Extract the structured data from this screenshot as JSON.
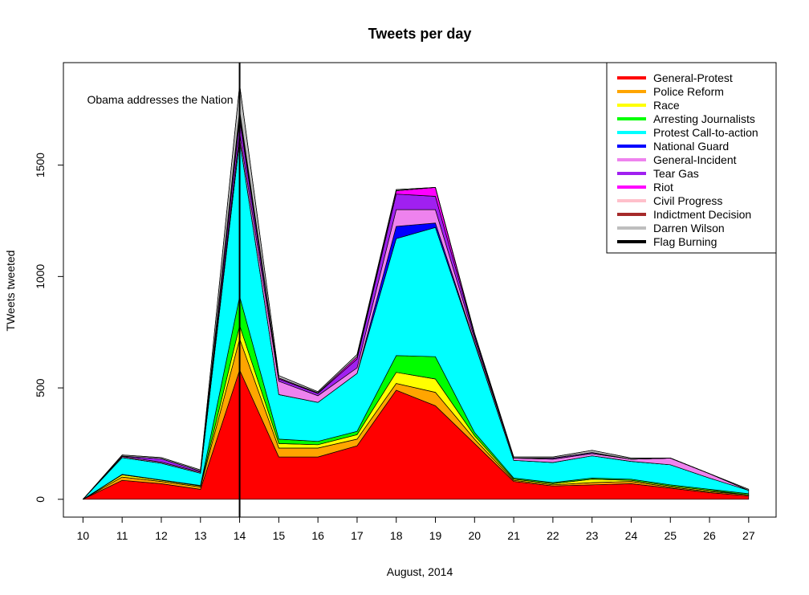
{
  "chart_data": {
    "type": "area",
    "stacked": true,
    "title": "Tweets per day",
    "xlabel": "August, 2014",
    "ylabel": "TWeets tweeted",
    "x": [
      10,
      11,
      12,
      13,
      14,
      15,
      16,
      17,
      18,
      19,
      20,
      21,
      22,
      23,
      24,
      25,
      26,
      27
    ],
    "xlim": [
      9.5,
      27.7
    ],
    "ylim": [
      -80,
      1960
    ],
    "yticks": [
      0,
      500,
      1000,
      1500
    ],
    "xticks": [
      10,
      11,
      12,
      13,
      14,
      15,
      16,
      17,
      18,
      19,
      20,
      21,
      22,
      23,
      24,
      25,
      26,
      27
    ],
    "grid": false,
    "legend_position": "top-right",
    "annotation": {
      "text": "Obama addresses the Nation",
      "x": 14
    },
    "series": [
      {
        "name": "General-Protest",
        "color": "#FF0000",
        "values": [
          0,
          85,
          70,
          45,
          580,
          190,
          190,
          240,
          490,
          420,
          250,
          80,
          60,
          65,
          70,
          50,
          30,
          15
        ]
      },
      {
        "name": "Police Reform",
        "color": "#FFA500",
        "values": [
          0,
          15,
          10,
          10,
          140,
          40,
          40,
          30,
          30,
          60,
          20,
          5,
          5,
          10,
          10,
          5,
          5,
          5
        ]
      },
      {
        "name": "Race",
        "color": "#FFFF00",
        "values": [
          0,
          10,
          5,
          5,
          60,
          20,
          15,
          20,
          50,
          60,
          15,
          5,
          5,
          15,
          5,
          5,
          5,
          0
        ]
      },
      {
        "name": "Arresting Journalists",
        "color": "#00FF00",
        "values": [
          0,
          2,
          2,
          2,
          130,
          20,
          15,
          15,
          75,
          100,
          15,
          5,
          5,
          5,
          5,
          5,
          5,
          5
        ]
      },
      {
        "name": "Protest Call-to-action",
        "color": "#00FFFF",
        "values": [
          0,
          75,
          75,
          55,
          700,
          200,
          175,
          260,
          525,
          580,
          400,
          80,
          90,
          100,
          80,
          90,
          50,
          15
        ]
      },
      {
        "name": "National Guard",
        "color": "#0000FF",
        "values": [
          0,
          0,
          0,
          0,
          5,
          0,
          0,
          0,
          55,
          20,
          5,
          0,
          0,
          0,
          0,
          0,
          0,
          0
        ]
      },
      {
        "name": "General-Incident",
        "color": "#EE82EE",
        "values": [
          0,
          5,
          5,
          5,
          30,
          60,
          30,
          25,
          75,
          60,
          15,
          10,
          15,
          10,
          10,
          30,
          20,
          0
        ]
      },
      {
        "name": "Tear Gas",
        "color": "#A020F0",
        "values": [
          0,
          2,
          15,
          5,
          60,
          10,
          10,
          40,
          70,
          60,
          15,
          0,
          5,
          5,
          0,
          0,
          0,
          0
        ]
      },
      {
        "name": "Riot",
        "color": "#FF00FF",
        "values": [
          0,
          0,
          0,
          0,
          20,
          5,
          3,
          10,
          15,
          40,
          5,
          0,
          0,
          0,
          0,
          0,
          0,
          0
        ]
      },
      {
        "name": "Civil Progress",
        "color": "#FFC0CB",
        "values": [
          0,
          0,
          0,
          0,
          10,
          0,
          0,
          0,
          0,
          0,
          0,
          0,
          0,
          0,
          0,
          0,
          0,
          0
        ]
      },
      {
        "name": "Indictment Decision",
        "color": "#A52A2A",
        "values": [
          0,
          0,
          0,
          0,
          10,
          0,
          0,
          0,
          0,
          0,
          0,
          0,
          0,
          0,
          0,
          0,
          0,
          0
        ]
      },
      {
        "name": "Darren Wilson",
        "color": "#BEBEBE",
        "values": [
          0,
          5,
          5,
          5,
          115,
          10,
          5,
          10,
          5,
          0,
          5,
          5,
          5,
          10,
          5,
          0,
          0,
          5
        ]
      },
      {
        "name": "Flag Burning",
        "color": "#000000",
        "values": [
          0,
          0,
          0,
          0,
          0,
          0,
          0,
          0,
          0,
          0,
          0,
          0,
          0,
          0,
          0,
          0,
          0,
          0
        ]
      }
    ]
  }
}
